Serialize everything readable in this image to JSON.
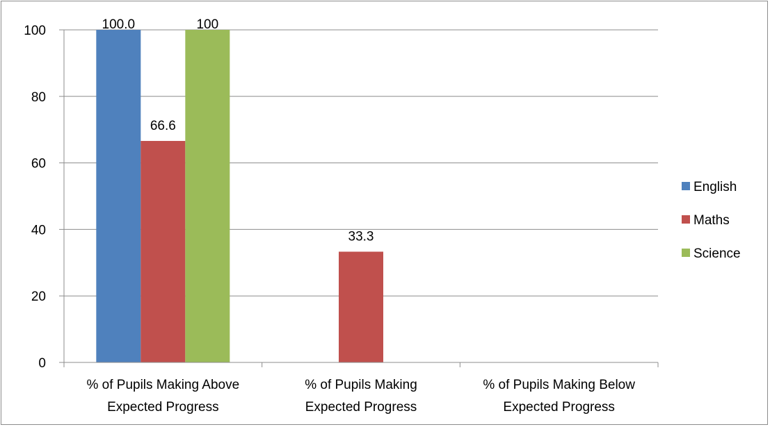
{
  "chart_data": {
    "type": "bar",
    "title": "",
    "xlabel": "",
    "ylabel": "",
    "ylim": [
      0,
      100
    ],
    "yticks": [
      0,
      20,
      40,
      60,
      80,
      100
    ],
    "grid": true,
    "legend_position": "right",
    "categories": [
      [
        "% of Pupils Making Above",
        "Expected Progress"
      ],
      [
        "% of Pupils Making",
        "Expected Progress"
      ],
      [
        "% of Pupils Making Below",
        "Expected Progress"
      ]
    ],
    "series": [
      {
        "name": "English",
        "color": "#4f81bd",
        "values": [
          100.0,
          null,
          null
        ],
        "labels": [
          "100.0",
          null,
          null
        ]
      },
      {
        "name": "Maths",
        "color": "#c0504d",
        "values": [
          66.6,
          33.3,
          null
        ],
        "labels": [
          "66.6",
          "33.3",
          null
        ]
      },
      {
        "name": "Science",
        "color": "#9bbb59",
        "values": [
          100,
          null,
          null
        ],
        "labels": [
          "100",
          null,
          null
        ]
      }
    ]
  }
}
